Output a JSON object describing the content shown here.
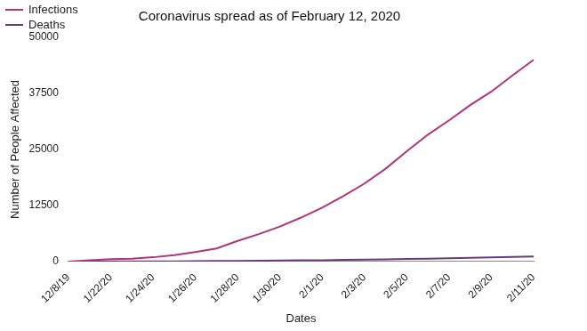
{
  "chart_data": {
    "type": "line",
    "title": "Coronavirus spread as of February 12, 2020",
    "x_label": "Dates",
    "y_label": "Number of People Affected",
    "categories": [
      "12/8/19",
      null,
      "1/22/20",
      null,
      "1/24/20",
      null,
      "1/26/20",
      null,
      "1/28/20",
      null,
      "1/30/20",
      null,
      "2/1/20",
      null,
      "2/3/20",
      null,
      "2/5/20",
      null,
      "2/7/20",
      null,
      "2/9/20",
      null,
      "2/11/20"
    ],
    "series": [
      {
        "name": "Infections",
        "color": "#b0347c",
        "values": [
          0,
          300,
          550,
          650,
          950,
          1400,
          2100,
          2900,
          4600,
          6100,
          7800,
          9800,
          12000,
          14600,
          17400,
          20700,
          24600,
          28300,
          31500,
          34900,
          37900,
          41500,
          45000
        ]
      },
      {
        "name": "Deaths",
        "color": "#6a3a7e",
        "values": [
          0,
          6,
          17,
          25,
          41,
          56,
          80,
          106,
          132,
          170,
          213,
          259,
          304,
          362,
          426,
          492,
          565,
          638,
          724,
          813,
          910,
          1018,
          1115
        ]
      }
    ],
    "ylim": [
      0,
      50000
    ],
    "yticks": [
      0,
      12500,
      25000,
      37500,
      50000
    ],
    "grid": false,
    "legend": "top-left"
  }
}
